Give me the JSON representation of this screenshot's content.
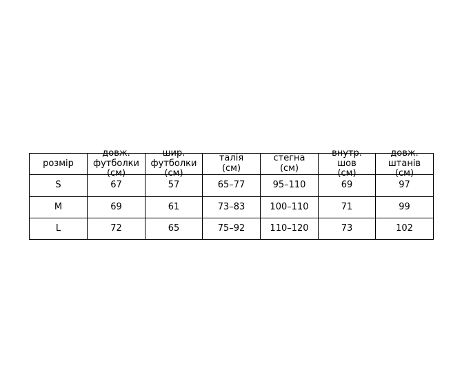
{
  "chart_data": {
    "type": "table",
    "columns": [
      [
        "розмір"
      ],
      [
        "довж.",
        "футболки",
        "(см)"
      ],
      [
        "шир.",
        "футболки",
        "(см)"
      ],
      [
        "талія",
        "(см)"
      ],
      [
        "стегна",
        "(см)"
      ],
      [
        "внутр.",
        "шов",
        "(см)"
      ],
      [
        "довж.",
        "штанів",
        "(см)"
      ]
    ],
    "rows": [
      [
        "S",
        "67",
        "57",
        "65–77",
        "95–110",
        "69",
        "97"
      ],
      [
        "M",
        "69",
        "61",
        "73–83",
        "100–110",
        "71",
        "99"
      ],
      [
        "L",
        "72",
        "65",
        "75–92",
        "110–120",
        "73",
        "102"
      ]
    ]
  }
}
